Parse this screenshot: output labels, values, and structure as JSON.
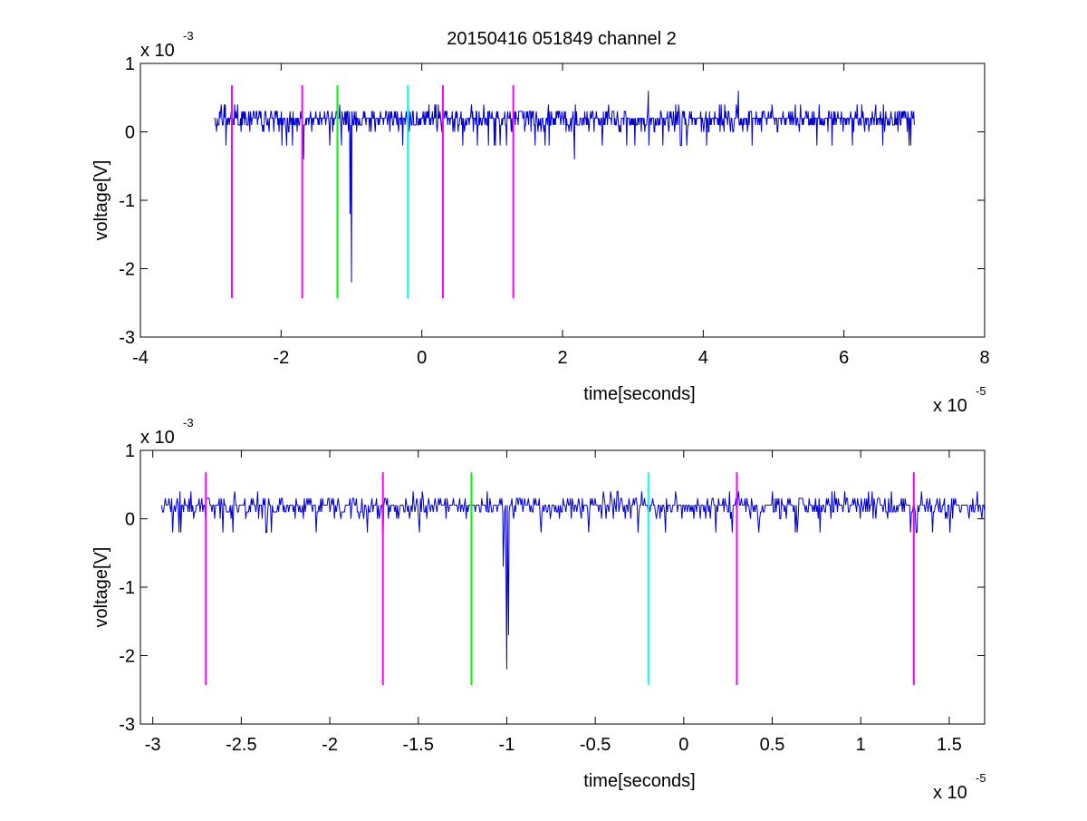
{
  "chart_data": [
    {
      "type": "line",
      "title": "20150416 051849 channel 2",
      "xlabel": "time[seconds]",
      "ylabel": "voltage[V]",
      "x_multiplier": "x 10",
      "x_multiplier_exp": "-5",
      "y_multiplier": "x 10",
      "y_multiplier_exp": "-3",
      "xlim": [
        -4,
        8
      ],
      "ylim": [
        -3,
        1
      ],
      "xticks": [
        -4,
        -2,
        0,
        2,
        4,
        6,
        8
      ],
      "xtick_labels": [
        "-4",
        "-2",
        "0",
        "2",
        "4",
        "6",
        "8"
      ],
      "yticks": [
        -3,
        -2,
        -1,
        0,
        1
      ],
      "ytick_labels": [
        "-3",
        "-2",
        "-1",
        "0",
        "1"
      ],
      "grid": false,
      "signal": {
        "color": "#0000cc",
        "x_range": [
          -2.95,
          7.0
        ],
        "baseline": 0.15,
        "noise_levels": [
          0,
          0.1,
          0.2,
          0.3,
          0.4
        ],
        "spikes": [
          {
            "x": -1.0,
            "y": -2.2
          },
          {
            "x": -1.02,
            "y": -1.2
          },
          {
            "x": -1.68,
            "y": -0.4
          },
          {
            "x": 2.17,
            "y": -0.4
          },
          {
            "x": 3.22,
            "y": 0.6
          },
          {
            "x": 4.5,
            "y": 0.6
          }
        ]
      },
      "markers": [
        {
          "x": -2.7,
          "color": "#ff00ff"
        },
        {
          "x": -1.7,
          "color": "#ff00ff"
        },
        {
          "x": -1.2,
          "color": "#00ff00"
        },
        {
          "x": -0.2,
          "color": "#00ffff"
        },
        {
          "x": 0.3,
          "color": "#ff00ff"
        },
        {
          "x": 1.3,
          "color": "#ff00ff"
        }
      ],
      "marker_yrange": [
        -2.43,
        0.68
      ]
    },
    {
      "type": "line",
      "title": "",
      "xlabel": "time[seconds]",
      "ylabel": "voltage[V]",
      "x_multiplier": "x 10",
      "x_multiplier_exp": "-5",
      "y_multiplier": "x 10",
      "y_multiplier_exp": "-3",
      "xlim": [
        -3.07,
        1.7
      ],
      "ylim": [
        -3,
        1
      ],
      "xticks": [
        -3,
        -2.5,
        -2,
        -1.5,
        -1,
        -0.5,
        0,
        0.5,
        1,
        1.5
      ],
      "xtick_labels": [
        "-3",
        "-2.5",
        "-2",
        "-1.5",
        "-1",
        "-0.5",
        "0",
        "0.5",
        "1",
        "1.5"
      ],
      "yticks": [
        -3,
        -2,
        -1,
        0,
        1
      ],
      "ytick_labels": [
        "-3",
        "-2",
        "-1",
        "0",
        "1"
      ],
      "grid": false,
      "signal": {
        "color": "#0000cc",
        "x_range": [
          -2.95,
          1.7
        ],
        "baseline": 0.15,
        "noise_levels": [
          0,
          0.1,
          0.2,
          0.3,
          0.4
        ],
        "spikes": [
          {
            "x": -1.0,
            "y": -2.2
          },
          {
            "x": -0.99,
            "y": -1.7
          },
          {
            "x": -1.02,
            "y": -0.7
          },
          {
            "x": -1.7,
            "y": -0.4
          }
        ]
      },
      "markers": [
        {
          "x": -2.7,
          "color": "#ff00ff"
        },
        {
          "x": -1.7,
          "color": "#ff00ff"
        },
        {
          "x": -1.2,
          "color": "#00ff00"
        },
        {
          "x": -0.2,
          "color": "#00ffff"
        },
        {
          "x": 0.3,
          "color": "#ff00ff"
        },
        {
          "x": 1.3,
          "color": "#ff00ff"
        }
      ],
      "marker_yrange": [
        -2.43,
        0.68
      ]
    }
  ]
}
